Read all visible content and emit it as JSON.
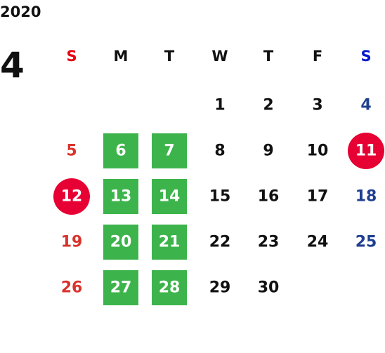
{
  "year": "2020",
  "month": "4",
  "weekdays": [
    "S",
    "M",
    "T",
    "W",
    "T",
    "F",
    "S"
  ],
  "weekday_colors": [
    "#e60012",
    "#111111",
    "#111111",
    "#111111",
    "#111111",
    "#111111",
    "#0a18d0"
  ],
  "day_colors": [
    "#d9332c",
    "#111111",
    "#111111",
    "#111111",
    "#111111",
    "#111111",
    "#1f3f8f"
  ],
  "weeks": [
    [
      null,
      null,
      null,
      1,
      2,
      3,
      4
    ],
    [
      5,
      {
        "value": 6,
        "shape": "square",
        "color": "#3cb44b"
      },
      {
        "value": 7,
        "shape": "square",
        "color": "#3cb44b"
      },
      8,
      9,
      10,
      {
        "value": 11,
        "shape": "circle",
        "color": "#e60033"
      }
    ],
    [
      {
        "value": 12,
        "shape": "circle",
        "color": "#e60033"
      },
      {
        "value": 13,
        "shape": "square",
        "color": "#3cb44b"
      },
      {
        "value": 14,
        "shape": "square",
        "color": "#3cb44b"
      },
      15,
      16,
      17,
      18
    ],
    [
      19,
      {
        "value": 20,
        "shape": "square",
        "color": "#3cb44b"
      },
      {
        "value": 21,
        "shape": "square",
        "color": "#3cb44b"
      },
      22,
      23,
      24,
      25
    ],
    [
      26,
      {
        "value": 27,
        "shape": "square",
        "color": "#3cb44b"
      },
      {
        "value": 28,
        "shape": "square",
        "color": "#3cb44b"
      },
      29,
      30,
      null,
      null
    ]
  ]
}
